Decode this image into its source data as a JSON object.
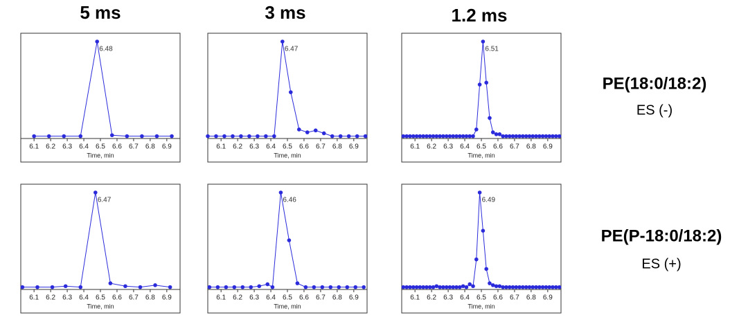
{
  "column_titles": [
    "5 ms",
    "3 ms",
    "1.2 ms"
  ],
  "row_labels": [
    {
      "compound": "PE(18:0/18:2)",
      "mode": "ES (-)"
    },
    {
      "compound": "PE(P-18:0/18:2)",
      "mode": "ES (+)"
    }
  ],
  "chart_data": [
    {
      "type": "line",
      "xlabel": "Time, min",
      "annotation": "6.48",
      "color": "#2b2bdc",
      "xlim": [
        6.02,
        6.98
      ],
      "xticks": [
        6.1,
        6.2,
        6.3,
        6.4,
        6.5,
        6.6,
        6.7,
        6.8,
        6.9
      ],
      "ylim": [
        0,
        100
      ],
      "x": [
        6.1,
        6.19,
        6.28,
        6.38,
        6.48,
        6.57,
        6.66,
        6.75,
        6.84,
        6.93
      ],
      "values": [
        1,
        1,
        1,
        1,
        100,
        2,
        1,
        1,
        1,
        1
      ]
    },
    {
      "type": "line",
      "xlabel": "Time, min",
      "annotation": "6.47",
      "color": "#2b2bdc",
      "xlim": [
        6.02,
        6.98
      ],
      "xticks": [
        6.1,
        6.2,
        6.3,
        6.4,
        6.5,
        6.6,
        6.7,
        6.8,
        6.9
      ],
      "ylim": [
        0,
        100
      ],
      "x": [
        6.02,
        6.07,
        6.12,
        6.17,
        6.22,
        6.27,
        6.32,
        6.37,
        6.42,
        6.47,
        6.52,
        6.57,
        6.62,
        6.67,
        6.72,
        6.77,
        6.82,
        6.87,
        6.92,
        6.97
      ],
      "values": [
        1,
        1,
        1,
        1,
        1,
        1,
        1,
        1,
        1,
        100,
        47,
        8,
        5,
        7,
        4,
        1,
        1,
        1,
        1,
        1
      ]
    },
    {
      "type": "line",
      "xlabel": "Time, min",
      "annotation": "6.51",
      "color": "#2b2bdc",
      "xlim": [
        6.02,
        6.98
      ],
      "xticks": [
        6.1,
        6.2,
        6.3,
        6.4,
        6.5,
        6.6,
        6.7,
        6.8,
        6.9
      ],
      "ylim": [
        0,
        100
      ],
      "x": [
        6.03,
        6.05,
        6.07,
        6.09,
        6.11,
        6.13,
        6.15,
        6.17,
        6.19,
        6.21,
        6.23,
        6.25,
        6.27,
        6.29,
        6.31,
        6.33,
        6.35,
        6.37,
        6.39,
        6.41,
        6.43,
        6.45,
        6.47,
        6.49,
        6.51,
        6.53,
        6.55,
        6.57,
        6.59,
        6.61,
        6.63,
        6.65,
        6.67,
        6.69,
        6.71,
        6.73,
        6.75,
        6.77,
        6.79,
        6.81,
        6.83,
        6.85,
        6.87,
        6.89,
        6.91,
        6.93,
        6.95,
        6.97
      ],
      "values": [
        1,
        1,
        1,
        1,
        1,
        1,
        1,
        1,
        1,
        1,
        1,
        1,
        1,
        1,
        1,
        1,
        1,
        1,
        1,
        1,
        1,
        1,
        8,
        55,
        100,
        57,
        20,
        5,
        3,
        3,
        1,
        1,
        1,
        1,
        1,
        1,
        1,
        1,
        1,
        1,
        1,
        1,
        1,
        1,
        1,
        1,
        1,
        1
      ]
    },
    {
      "type": "line",
      "xlabel": "Time, min",
      "annotation": "6.47",
      "color": "#2b2bdc",
      "xlim": [
        6.02,
        6.98
      ],
      "xticks": [
        6.1,
        6.2,
        6.3,
        6.4,
        6.5,
        6.6,
        6.7,
        6.8,
        6.9
      ],
      "ylim": [
        0,
        100
      ],
      "x": [
        6.03,
        6.12,
        6.21,
        6.29,
        6.38,
        6.47,
        6.56,
        6.65,
        6.74,
        6.83,
        6.92
      ],
      "values": [
        1,
        1,
        1,
        2,
        1,
        100,
        5,
        2,
        1,
        3,
        1
      ]
    },
    {
      "type": "line",
      "xlabel": "Time, min",
      "annotation": "6.46",
      "color": "#2b2bdc",
      "xlim": [
        6.02,
        6.98
      ],
      "xticks": [
        6.1,
        6.2,
        6.3,
        6.4,
        6.5,
        6.6,
        6.7,
        6.8,
        6.9
      ],
      "ylim": [
        0,
        100
      ],
      "x": [
        6.03,
        6.08,
        6.13,
        6.18,
        6.23,
        6.28,
        6.33,
        6.38,
        6.41,
        6.46,
        6.51,
        6.56,
        6.61,
        6.66,
        6.71,
        6.76,
        6.81,
        6.86,
        6.91,
        6.96
      ],
      "values": [
        1,
        1,
        1,
        1,
        1,
        1,
        2,
        4,
        1,
        100,
        50,
        5,
        1,
        1,
        1,
        1,
        1,
        1,
        1,
        1
      ]
    },
    {
      "type": "line",
      "xlabel": "Time, min",
      "annotation": "6.49",
      "color": "#2b2bdc",
      "xlim": [
        6.02,
        6.98
      ],
      "xticks": [
        6.1,
        6.2,
        6.3,
        6.4,
        6.5,
        6.6,
        6.7,
        6.8,
        6.9
      ],
      "ylim": [
        0,
        100
      ],
      "x": [
        6.03,
        6.05,
        6.07,
        6.09,
        6.11,
        6.13,
        6.15,
        6.17,
        6.19,
        6.21,
        6.23,
        6.25,
        6.27,
        6.29,
        6.31,
        6.33,
        6.35,
        6.37,
        6.39,
        6.41,
        6.43,
        6.45,
        6.47,
        6.49,
        6.51,
        6.53,
        6.55,
        6.57,
        6.59,
        6.61,
        6.63,
        6.65,
        6.67,
        6.69,
        6.71,
        6.73,
        6.75,
        6.77,
        6.79,
        6.81,
        6.83,
        6.85,
        6.87,
        6.89,
        6.91,
        6.93,
        6.95,
        6.97
      ],
      "values": [
        1,
        1,
        1,
        1,
        1,
        1,
        1,
        1,
        1,
        1,
        2,
        1,
        1,
        1,
        1,
        1,
        1,
        1,
        2,
        1,
        4,
        2,
        30,
        100,
        60,
        20,
        5,
        3,
        2,
        2,
        1,
        1,
        1,
        1,
        1,
        1,
        1,
        1,
        1,
        1,
        1,
        1,
        1,
        1,
        1,
        1,
        1,
        1
      ]
    }
  ]
}
